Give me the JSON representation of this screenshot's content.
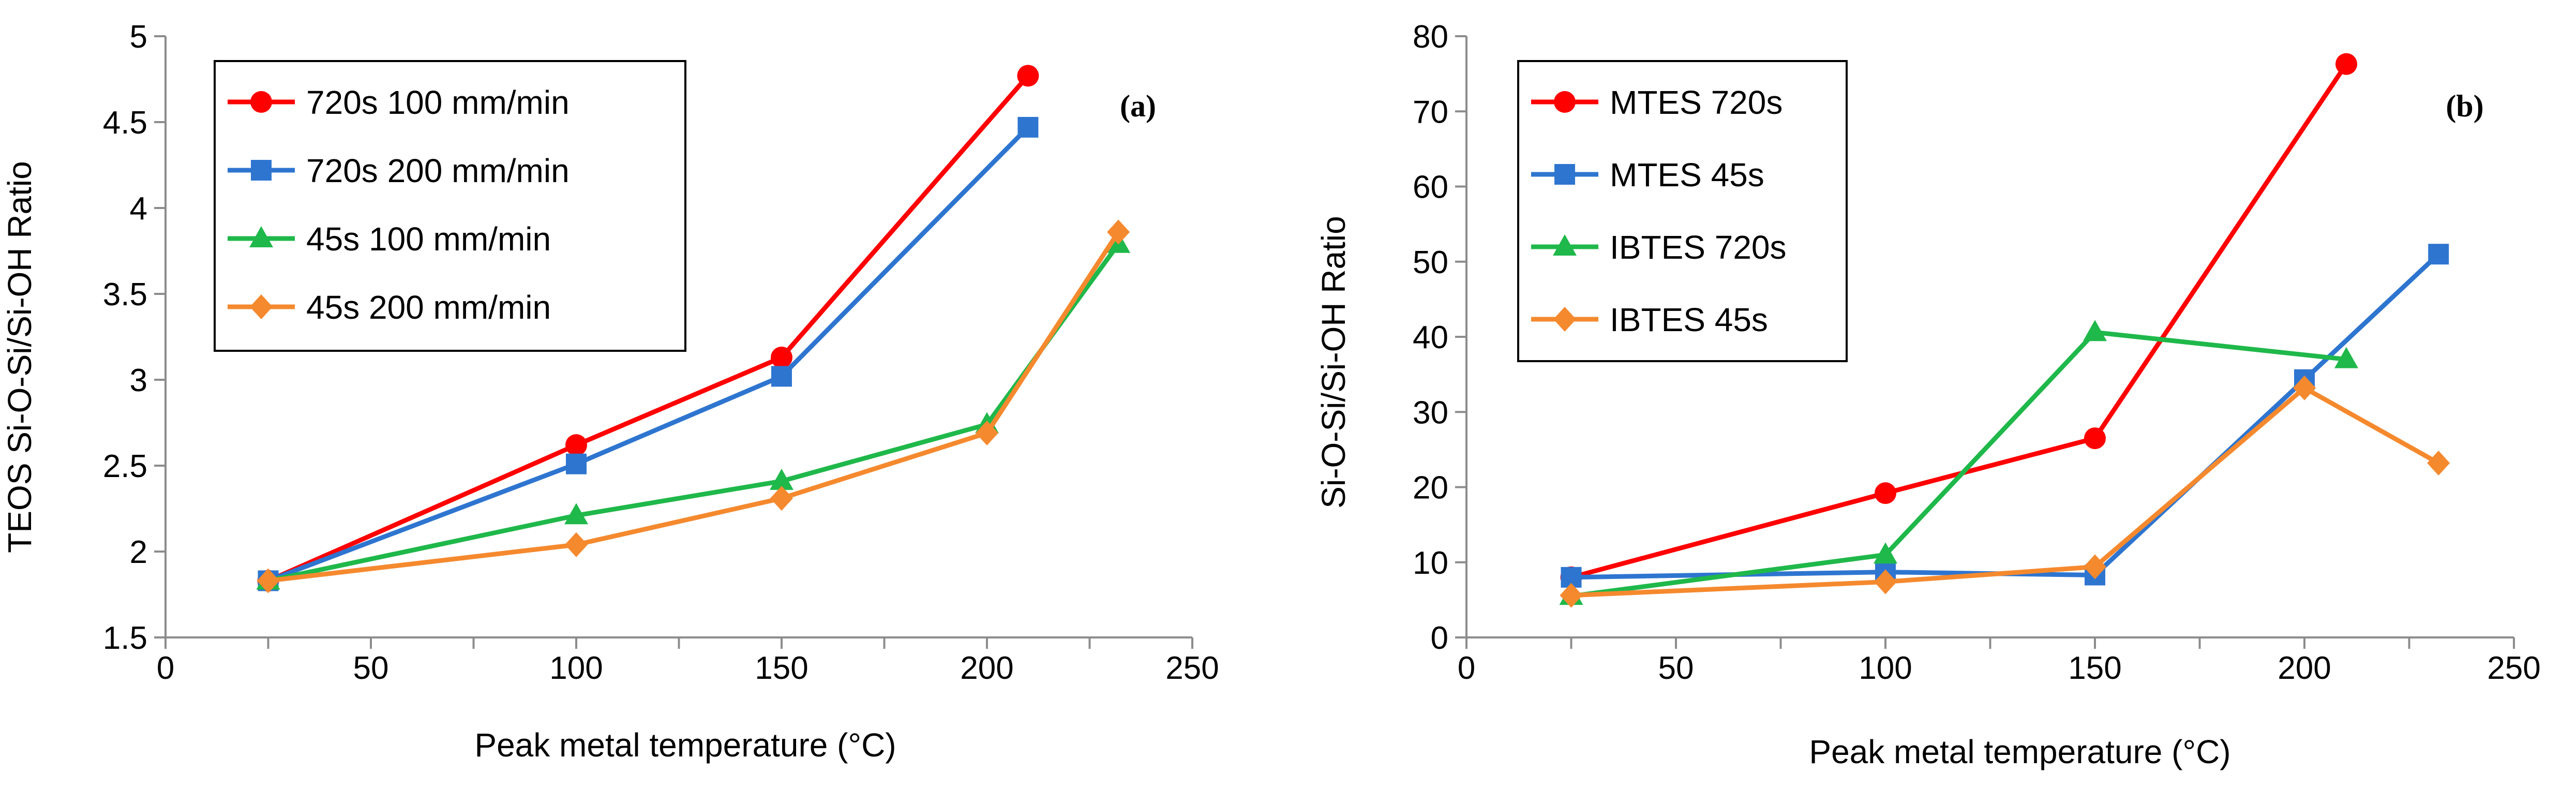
{
  "chart_data": [
    {
      "type": "line",
      "panel_label": "(a)",
      "xlabel": "Peak metal temperature (°C)",
      "ylabel": "TEOS Si-O-Si/Si-OH Ratio",
      "xlim": [
        0,
        250
      ],
      "ylim": [
        1.5,
        5
      ],
      "xticks": [
        0,
        50,
        100,
        150,
        200,
        250
      ],
      "yticks": [
        1.5,
        2,
        2.5,
        3,
        3.5,
        4,
        4.5,
        5
      ],
      "xtick_labels": [
        "0",
        "50",
        "100",
        "150",
        "200",
        "250"
      ],
      "ytick_labels": [
        "1.5",
        "2",
        "2.5",
        "3",
        "3.5",
        "4",
        "4.5",
        "5"
      ],
      "grid": false,
      "legend_position": "top-left",
      "series": [
        {
          "name": "720s 100 mm/min",
          "color": "#ff0000",
          "marker": "circle",
          "x": [
            25,
            100,
            150,
            210
          ],
          "y": [
            1.83,
            2.62,
            3.13,
            4.77
          ]
        },
        {
          "name": "720s 200 mm/min",
          "color": "#2e75d0",
          "marker": "square",
          "x": [
            25,
            100,
            150,
            210
          ],
          "y": [
            1.83,
            2.51,
            3.02,
            4.47
          ]
        },
        {
          "name": "45s 100 mm/min",
          "color": "#1fb84a",
          "marker": "triangle",
          "x": [
            25,
            100,
            150,
            200,
            232
          ],
          "y": [
            1.83,
            2.21,
            2.41,
            2.74,
            3.79
          ]
        },
        {
          "name": "45s 200 mm/min",
          "color": "#f5892e",
          "marker": "diamond",
          "x": [
            25,
            100,
            150,
            200,
            232
          ],
          "y": [
            1.83,
            2.04,
            2.31,
            2.69,
            3.86
          ]
        }
      ]
    },
    {
      "type": "line",
      "panel_label": "(b)",
      "xlabel": "Peak metal temperature (°C)",
      "ylabel": "Si-O-Si/Si-OH Ratio",
      "xlim": [
        0,
        250
      ],
      "ylim": [
        0,
        80
      ],
      "xticks": [
        0,
        50,
        100,
        150,
        200,
        250
      ],
      "yticks": [
        0,
        10,
        20,
        30,
        40,
        50,
        60,
        70,
        80
      ],
      "xtick_labels": [
        "0",
        "50",
        "100",
        "150",
        "200",
        "250"
      ],
      "ytick_labels": [
        "0",
        "10",
        "20",
        "30",
        "40",
        "50",
        "60",
        "70",
        "80"
      ],
      "grid": false,
      "legend_position": "top-left",
      "series": [
        {
          "name": "MTES 720s",
          "color": "#ff0000",
          "marker": "circle",
          "x": [
            25,
            100,
            150,
            210
          ],
          "y": [
            8,
            19.2,
            26.5,
            76.3
          ]
        },
        {
          "name": "MTES 45s",
          "color": "#2e75d0",
          "marker": "square",
          "x": [
            25,
            100,
            150,
            200,
            232
          ],
          "y": [
            8,
            8.7,
            8.3,
            34.3,
            51
          ]
        },
        {
          "name": "IBTES 720s",
          "color": "#1fb84a",
          "marker": "triangle",
          "x": [
            25,
            100,
            150,
            210
          ],
          "y": [
            5.5,
            11,
            40.6,
            37
          ]
        },
        {
          "name": "IBTES 45s",
          "color": "#f5892e",
          "marker": "diamond",
          "x": [
            25,
            100,
            150,
            200,
            232
          ],
          "y": [
            5.6,
            7.4,
            9.4,
            33.2,
            23.2
          ]
        }
      ]
    }
  ]
}
